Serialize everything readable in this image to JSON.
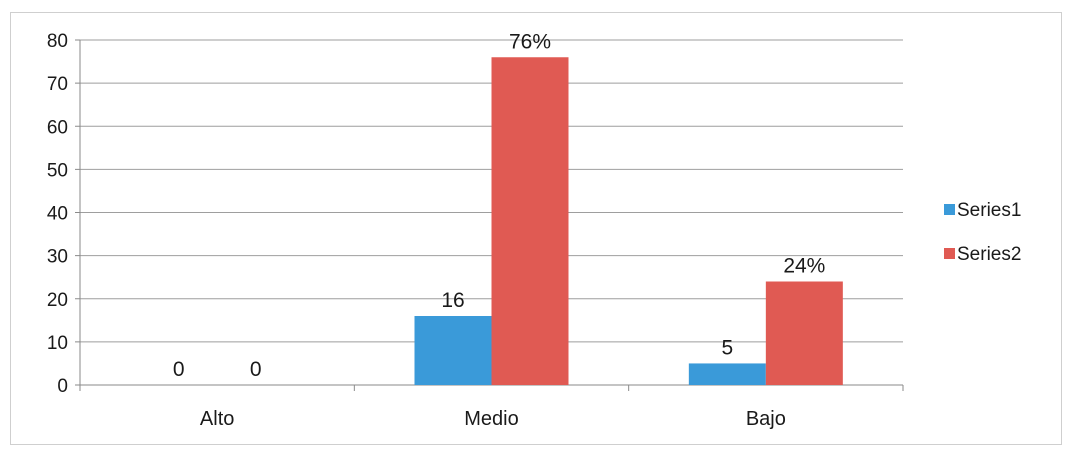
{
  "chart_data": {
    "type": "bar",
    "categories": [
      "Alto",
      "Medio",
      "Bajo"
    ],
    "series": [
      {
        "name": "Series1",
        "color": "#3a9ad9",
        "values": [
          0,
          16,
          5
        ],
        "data_labels": [
          "0",
          "16",
          "5"
        ]
      },
      {
        "name": "Series2",
        "color": "#e05a53",
        "values": [
          0,
          76,
          24
        ],
        "data_labels": [
          "0",
          "76%",
          "24%"
        ]
      }
    ],
    "y_ticks": [
      "0",
      "10",
      "20",
      "30",
      "40",
      "50",
      "60",
      "70",
      "80"
    ],
    "ylim": [
      0,
      80
    ],
    "grid": true,
    "legend_position": "right"
  }
}
